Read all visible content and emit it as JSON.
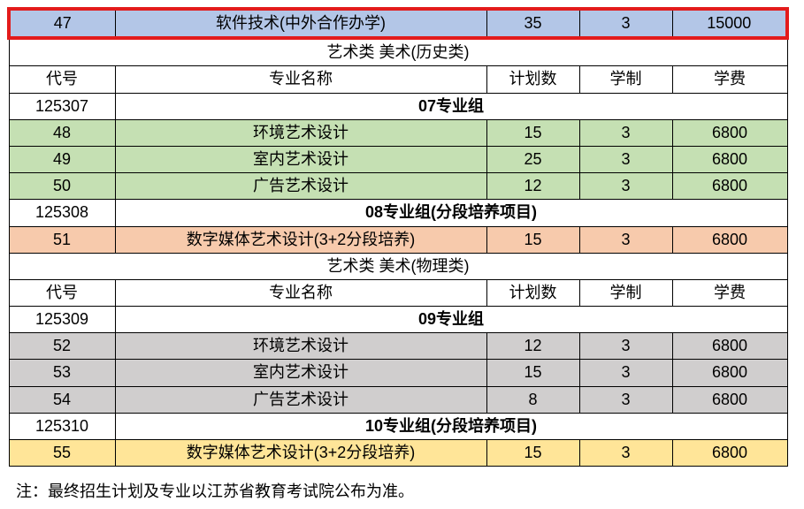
{
  "colors": {
    "highlight_border": "#e31b1b",
    "bg_blue": "#b3c6e7",
    "bg_green": "#c5e0b3",
    "bg_orange": "#f7caac",
    "bg_gray": "#d0cece",
    "bg_yellow": "#ffe598",
    "bg_white": "#ffffff",
    "border": "#000000"
  },
  "row_highlight": {
    "code": "47",
    "major": "软件技术(中外合作办学)",
    "plan": "35",
    "duration": "3",
    "tuition": "15000"
  },
  "section1": {
    "title": "艺术类  美术(历史类)",
    "header": {
      "col1": "代号",
      "col2": "专业名称",
      "col3": "计划数",
      "col4": "学制",
      "col5": "学费"
    },
    "group07": {
      "code": "125307",
      "label": "07专业组"
    },
    "row48": {
      "code": "48",
      "major": "环境艺术设计",
      "plan": "15",
      "duration": "3",
      "tuition": "6800"
    },
    "row49": {
      "code": "49",
      "major": "室内艺术设计",
      "plan": "25",
      "duration": "3",
      "tuition": "6800"
    },
    "row50": {
      "code": "50",
      "major": "广告艺术设计",
      "plan": "12",
      "duration": "3",
      "tuition": "6800"
    },
    "group08": {
      "code": "125308",
      "label": "08专业组(分段培养项目)"
    },
    "row51": {
      "code": "51",
      "major": "数字媒体艺术设计(3+2分段培养)",
      "plan": "15",
      "duration": "3",
      "tuition": "6800"
    }
  },
  "section2": {
    "title": "艺术类  美术(物理类)",
    "header": {
      "col1": "代号",
      "col2": "专业名称",
      "col3": "计划数",
      "col4": "学制",
      "col5": "学费"
    },
    "group09": {
      "code": "125309",
      "label": "09专业组"
    },
    "row52": {
      "code": "52",
      "major": "环境艺术设计",
      "plan": "12",
      "duration": "3",
      "tuition": "6800"
    },
    "row53": {
      "code": "53",
      "major": "室内艺术设计",
      "plan": "15",
      "duration": "3",
      "tuition": "6800"
    },
    "row54": {
      "code": "54",
      "major": "广告艺术设计",
      "plan": "8",
      "duration": "3",
      "tuition": "6800"
    },
    "group10": {
      "code": "125310",
      "label": "10专业组(分段培养项目)"
    },
    "row55": {
      "code": "55",
      "major": "数字媒体艺术设计(3+2分段培养)",
      "plan": "15",
      "duration": "3",
      "tuition": "6800"
    }
  },
  "note": "注：最终招生计划及专业以江苏省教育考试院公布为准。"
}
